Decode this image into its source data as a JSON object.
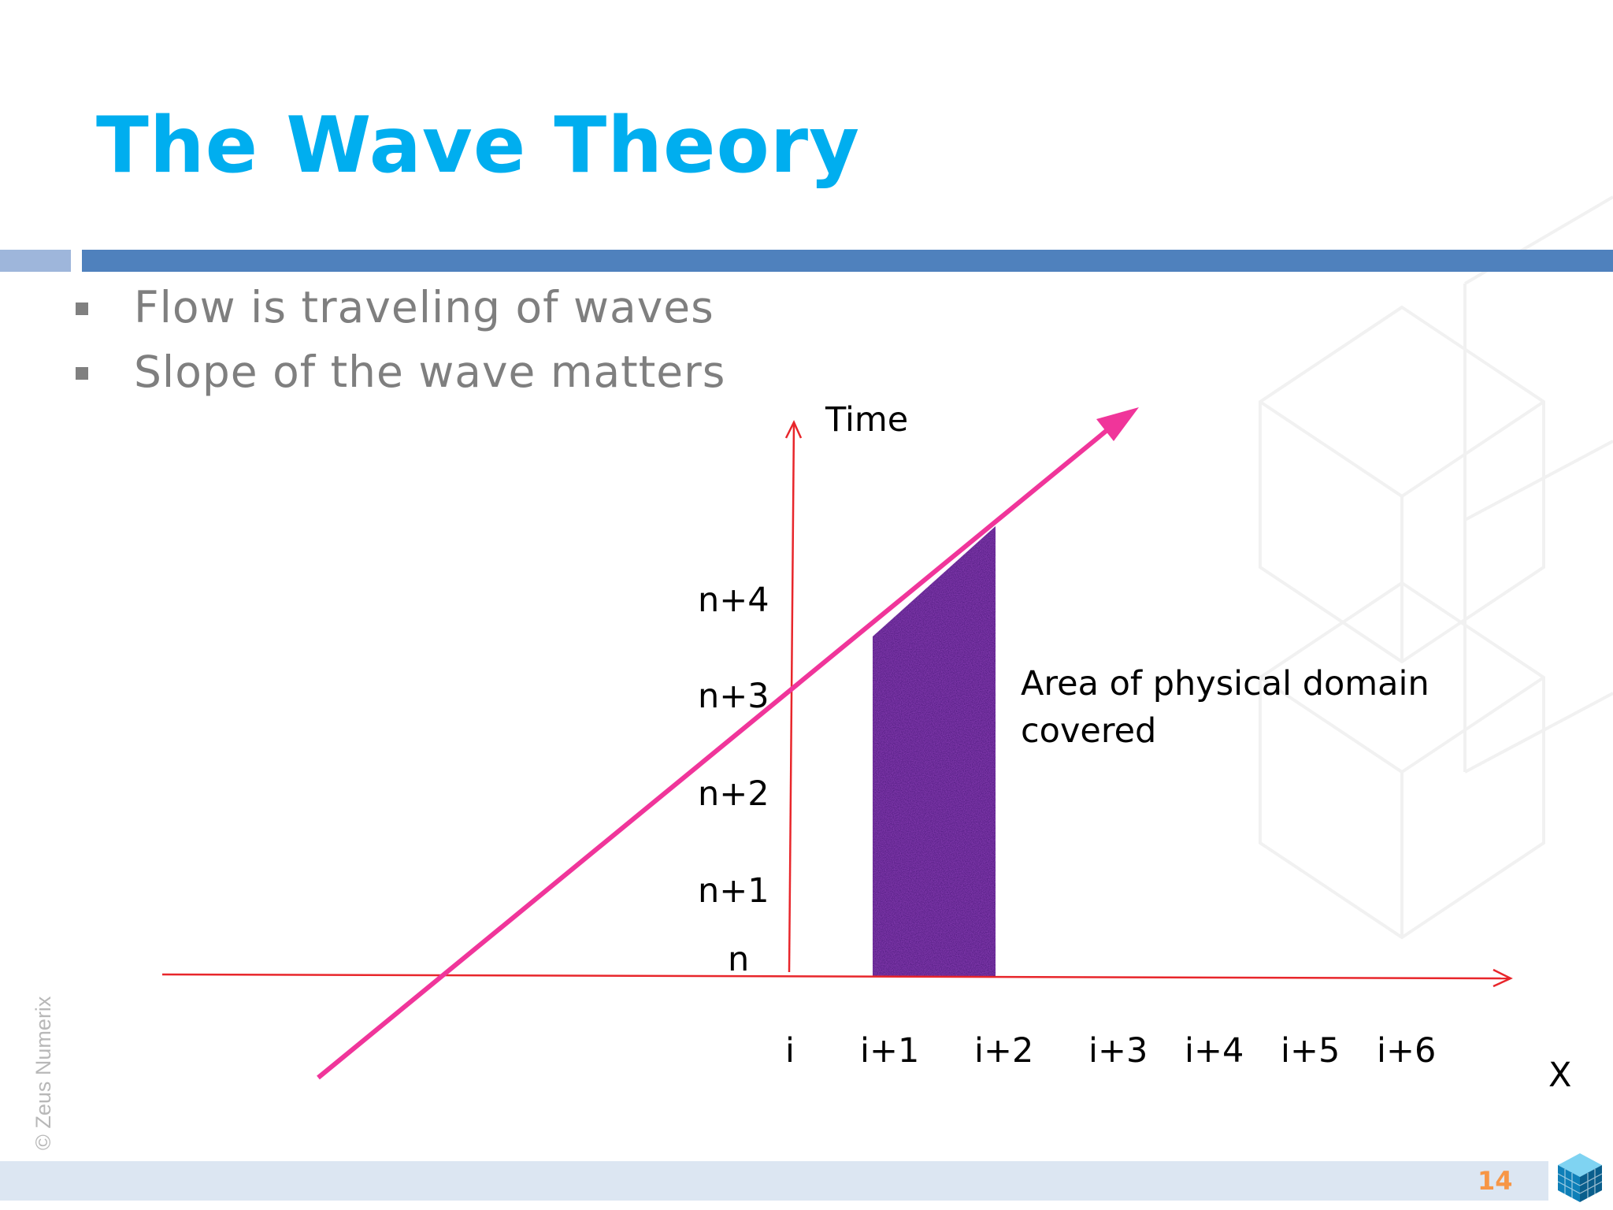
{
  "slide": {
    "title": "The Wave Theory",
    "bullets": [
      "Flow is traveling of waves",
      "Slope of the wave matters"
    ],
    "page_number": "14",
    "copyright": "© Zeus Numerix"
  },
  "diagram": {
    "time_axis_label": "Time",
    "x_axis_label": "X",
    "time_levels": [
      "n",
      "n+1",
      "n+2",
      "n+3",
      "n+4"
    ],
    "space_points": [
      "i",
      "i+1",
      "i+2",
      "i+3",
      "i+4",
      "i+5",
      "i+6"
    ],
    "region_label_lines": [
      "Area of physical domain",
      "covered"
    ],
    "colors": {
      "axes": "#E8262B",
      "wave_line": "#F0359A",
      "domain_region": "#3A1470",
      "title": "#00AEEF",
      "header_rule": "#4F81BD",
      "page_number": "#F79646"
    }
  }
}
